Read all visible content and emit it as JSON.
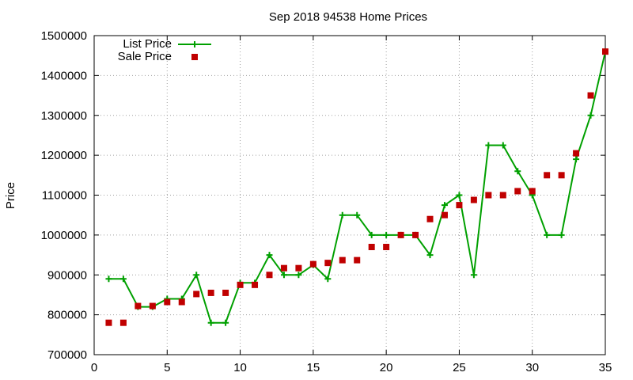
{
  "chart_data": {
    "type": "line",
    "title": "Sep 2018 94538 Home Prices",
    "xlabel": "",
    "ylabel": "Price",
    "xlim": [
      0,
      35
    ],
    "ylim": [
      700000,
      1500000
    ],
    "x_ticks": [
      "0",
      "5",
      "10",
      "15",
      "20",
      "25",
      "30",
      "35"
    ],
    "x_tick_values": [
      0,
      5,
      10,
      15,
      20,
      25,
      30,
      35
    ],
    "y_ticks": [
      "700000",
      "800000",
      "900000",
      "1000000",
      "1100000",
      "1200000",
      "1300000",
      "1400000",
      "1500000"
    ],
    "y_tick_values": [
      700000,
      800000,
      900000,
      1000000,
      1100000,
      1200000,
      1300000,
      1400000,
      1500000
    ],
    "grid": true,
    "legend_position": "top-left",
    "x": [
      1,
      2,
      3,
      4,
      5,
      6,
      7,
      8,
      9,
      10,
      11,
      12,
      13,
      14,
      15,
      16,
      17,
      18,
      19,
      20,
      21,
      22,
      23,
      24,
      25,
      26,
      27,
      28,
      29,
      30,
      31,
      32,
      33,
      34,
      35
    ],
    "series": [
      {
        "name": "List Price",
        "style": "line-plus",
        "color": "#00a000",
        "values": [
          890000,
          890000,
          820000,
          820000,
          840000,
          840000,
          900000,
          780000,
          780000,
          880000,
          880000,
          950000,
          900000,
          900000,
          925000,
          890000,
          1050000,
          1050000,
          1000000,
          1000000,
          1000000,
          1000000,
          950000,
          1075000,
          1100000,
          900000,
          1225000,
          1225000,
          1160000,
          1100000,
          1000000,
          1000000,
          1190000,
          1300000,
          1460000
        ]
      },
      {
        "name": "Sale Price",
        "style": "square-points",
        "color": "#c00000",
        "values": [
          780000,
          780000,
          822000,
          822000,
          832000,
          832000,
          852000,
          855000,
          855000,
          875000,
          875000,
          900000,
          917000,
          917000,
          927000,
          930000,
          937000,
          937000,
          970000,
          970000,
          1000000,
          1000000,
          1040000,
          1050000,
          1075000,
          1088000,
          1100000,
          1100000,
          1110000,
          1110000,
          1150000,
          1150000,
          1205000,
          1350000,
          1460000
        ]
      }
    ]
  }
}
